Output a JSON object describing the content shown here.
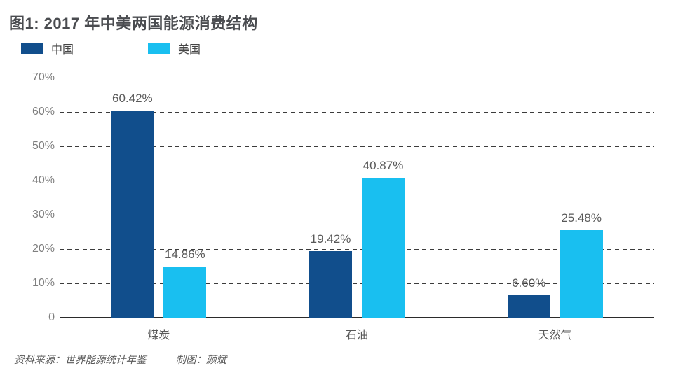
{
  "figure": {
    "title": "图1: 2017 年中美两国能源消费结构",
    "footer": {
      "source": "资料来源：世界能源统计年鉴",
      "credit": "制图：颜斌"
    }
  },
  "chart_data": {
    "type": "bar",
    "title": "图1: 2017 年中美两国能源消费结构",
    "categories": [
      "煤炭",
      "石油",
      "天然气"
    ],
    "series": [
      {
        "name": "中国",
        "color": "#114e8c",
        "values": [
          60.42,
          19.42,
          6.6
        ],
        "labels": [
          "60.42%",
          "19.42%",
          "6.60%"
        ]
      },
      {
        "name": "美国",
        "color": "#19bff0",
        "values": [
          14.86,
          40.87,
          25.48
        ],
        "labels": [
          "14.86%",
          "40.87%",
          "25.48%"
        ]
      }
    ],
    "xlabel": "",
    "ylabel": "",
    "ylim": [
      0,
      70
    ],
    "yticks": [
      {
        "label": "70%",
        "value": 70
      },
      {
        "label": "60%",
        "value": 60
      },
      {
        "label": "50%",
        "value": 50
      },
      {
        "label": "40%",
        "value": 40
      },
      {
        "label": "30%",
        "value": 30
      },
      {
        "label": "20%",
        "value": 20
      },
      {
        "label": "10%",
        "value": 10
      },
      {
        "label": "0",
        "value": 0
      }
    ],
    "grid": "horizontal-dashed",
    "legend_position": "top-left"
  },
  "colors": {
    "china_bar": "#114e8c",
    "us_bar": "#19bff0",
    "grid_line": "#3c3c3c",
    "axis_line": "#2b2b2b",
    "title_text": "#4a4c50",
    "label_text": "#595959",
    "tick_text": "#7f7f7f"
  }
}
